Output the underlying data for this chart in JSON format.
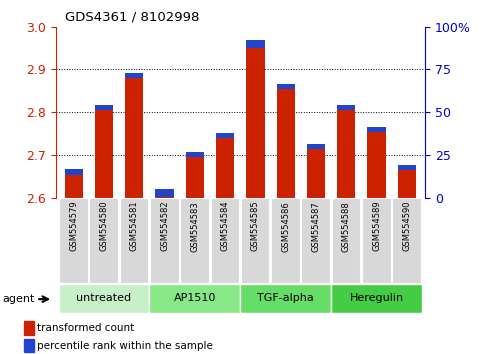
{
  "title": "GDS4361 / 8102998",
  "samples": [
    "GSM554579",
    "GSM554580",
    "GSM554581",
    "GSM554582",
    "GSM554583",
    "GSM554584",
    "GSM554585",
    "GSM554586",
    "GSM554587",
    "GSM554588",
    "GSM554589",
    "GSM554590"
  ],
  "red_values": [
    2.655,
    2.805,
    2.88,
    2.602,
    2.695,
    2.74,
    2.95,
    2.855,
    2.715,
    2.805,
    2.755,
    2.665
  ],
  "blue_heights": [
    0.012,
    0.012,
    0.012,
    0.02,
    0.012,
    0.012,
    0.018,
    0.012,
    0.012,
    0.012,
    0.012,
    0.012
  ],
  "ymin": 2.6,
  "ymax": 3.0,
  "yticks": [
    2.6,
    2.7,
    2.8,
    2.9,
    3.0
  ],
  "right_yticks": [
    0,
    25,
    50,
    75,
    100
  ],
  "groups": [
    {
      "label": "untreated",
      "start": 0,
      "end": 3,
      "color": "#c8f0c8"
    },
    {
      "label": "AP1510",
      "start": 3,
      "end": 6,
      "color": "#88e888"
    },
    {
      "label": "TGF-alpha",
      "start": 6,
      "end": 9,
      "color": "#66dd66"
    },
    {
      "label": "Heregulin",
      "start": 9,
      "end": 12,
      "color": "#44cc44"
    }
  ],
  "bar_width": 0.6,
  "red_color": "#cc2200",
  "blue_color": "#2244cc",
  "tick_color_left": "#cc2200",
  "tick_color_right": "#0000cc",
  "bg_color": "#ffffff",
  "plot_bg": "#ffffff",
  "agent_label": "agent",
  "legend_red": "transformed count",
  "legend_blue": "percentile rank within the sample"
}
